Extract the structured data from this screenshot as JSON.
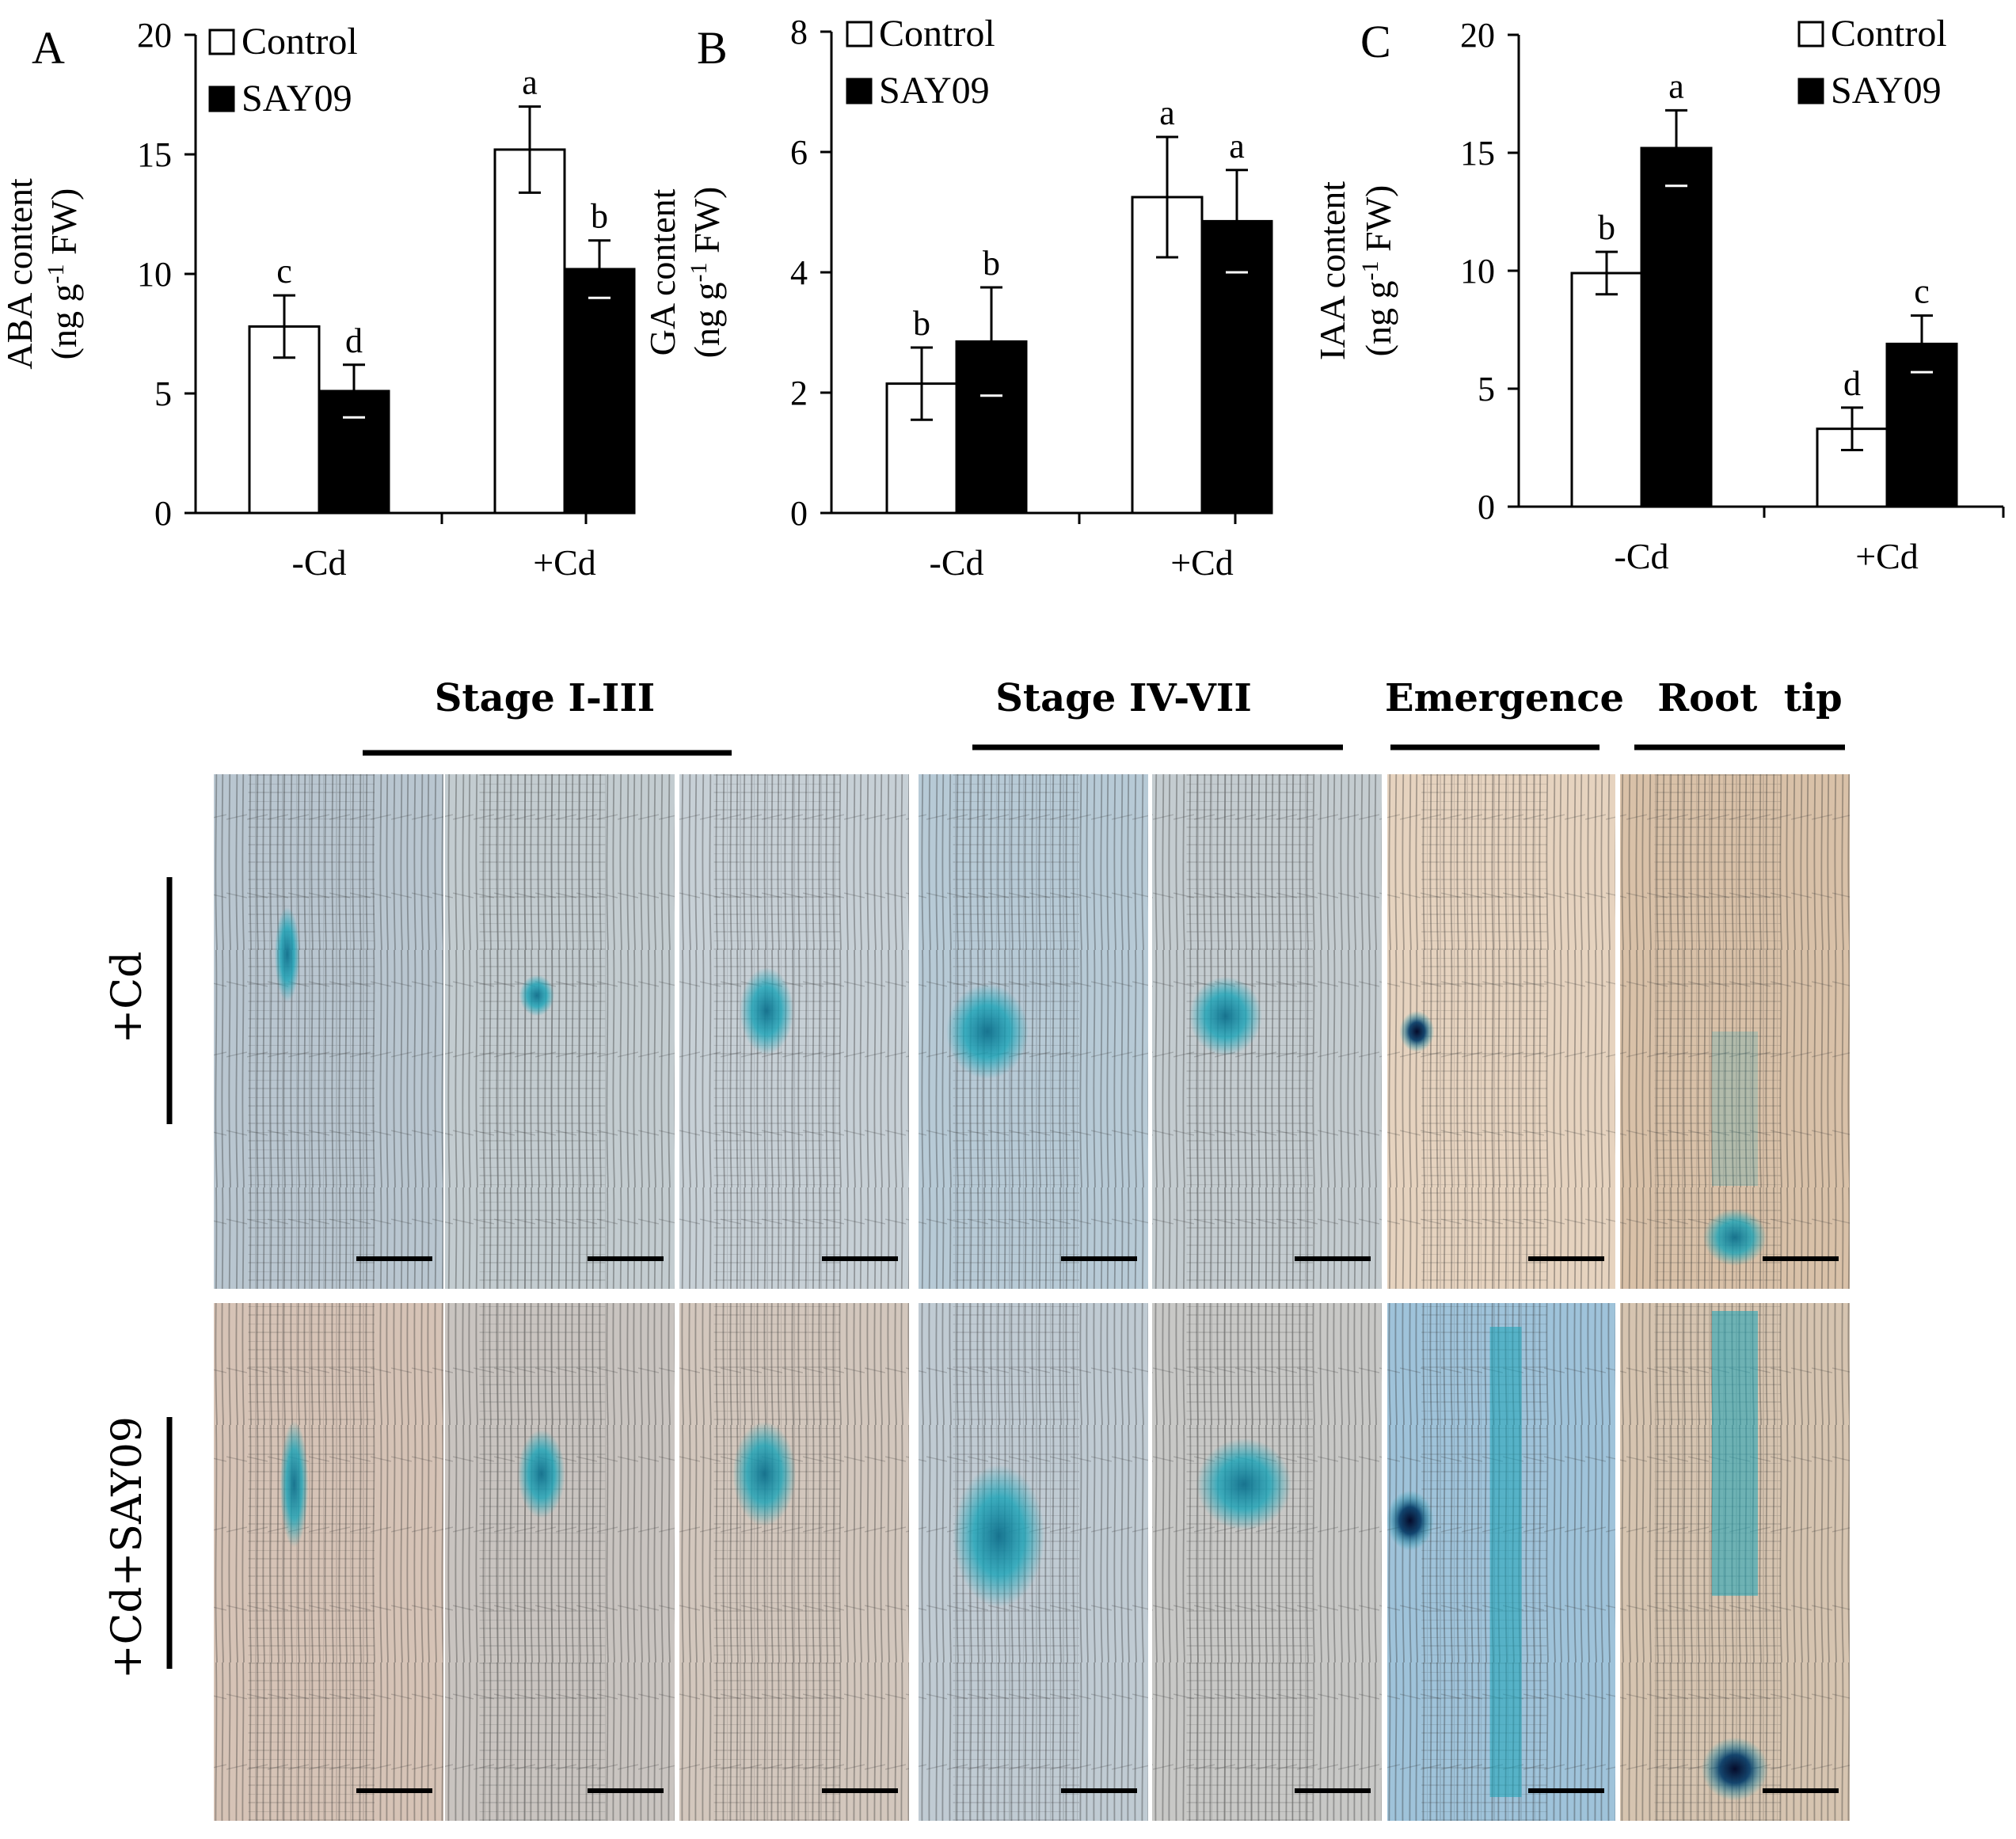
{
  "colors": {
    "control": "#ffffff",
    "say09": "#000000",
    "stain": "#1aa4b8",
    "stain_dark": "#0b3f6a"
  },
  "chart_data": [
    {
      "panel": "A",
      "type": "bar",
      "ylabel": "ABA content",
      "yunit": "(ng g-1 FW)",
      "ylim": [
        0,
        20
      ],
      "yticks": [
        0,
        5,
        10,
        15,
        20
      ],
      "categories": [
        "-Cd",
        "+Cd"
      ],
      "legend": [
        "Control",
        "SAY09"
      ],
      "series": [
        {
          "name": "Control",
          "values": [
            7.8,
            15.2
          ],
          "errors": [
            1.3,
            1.8
          ],
          "letters": [
            "c",
            "a"
          ]
        },
        {
          "name": "SAY09",
          "values": [
            5.1,
            10.2
          ],
          "errors": [
            1.1,
            1.2
          ],
          "letters": [
            "d",
            "b"
          ]
        }
      ]
    },
    {
      "panel": "B",
      "type": "bar",
      "ylabel": "GA content",
      "yunit": "(ng g-1 FW)",
      "ylim": [
        0,
        8
      ],
      "yticks": [
        0,
        2,
        4,
        6,
        8
      ],
      "categories": [
        "-Cd",
        "+Cd"
      ],
      "legend": [
        "Control",
        "SAY09"
      ],
      "series": [
        {
          "name": "Control",
          "values": [
            2.15,
            5.25
          ],
          "errors": [
            0.6,
            1.0
          ],
          "letters": [
            "b",
            "a"
          ]
        },
        {
          "name": "SAY09",
          "values": [
            2.85,
            4.85
          ],
          "errors": [
            0.9,
            0.85
          ],
          "letters": [
            "b",
            "a"
          ]
        }
      ]
    },
    {
      "panel": "C",
      "type": "bar",
      "ylabel": "IAA content",
      "yunit": "(ng g-1 FW)",
      "ylim": [
        0,
        20
      ],
      "yticks": [
        0,
        5,
        10,
        15,
        20
      ],
      "categories": [
        "-Cd",
        "+Cd"
      ],
      "legend": [
        "Control",
        "SAY09"
      ],
      "series": [
        {
          "name": "Control",
          "values": [
            9.9,
            3.3
          ],
          "errors": [
            0.9,
            0.9
          ],
          "letters": [
            "b",
            "d"
          ]
        },
        {
          "name": "SAY09",
          "values": [
            15.2,
            6.9
          ],
          "errors": [
            1.6,
            1.2
          ],
          "letters": [
            "a",
            "c"
          ]
        }
      ]
    }
  ],
  "micrographs": {
    "stage_labels": [
      "Stage I-III",
      "Stage IV-VII",
      "Emergence",
      "Root  tip"
    ],
    "row_labels": [
      "+Cd",
      "+Cd+SAY09"
    ]
  }
}
